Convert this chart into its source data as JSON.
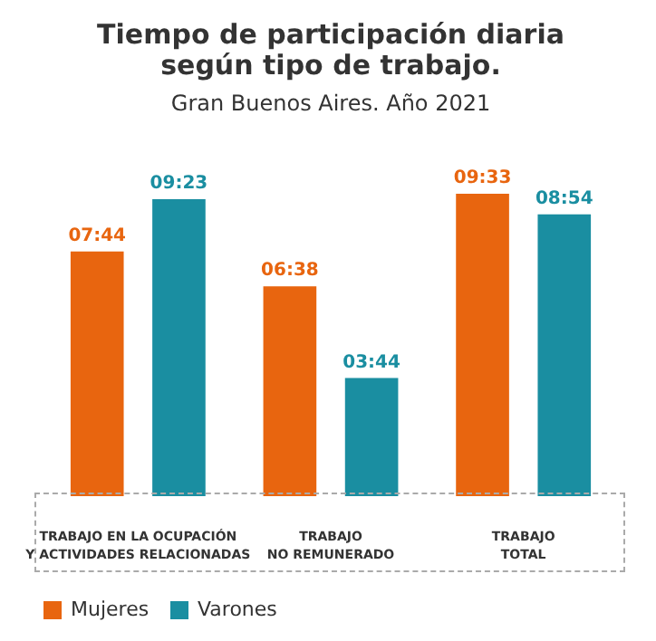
{
  "chart_data": {
    "type": "bar",
    "title": "Tiempo de participación diaria\nsegún tipo de trabajo.",
    "subtitle": "Gran Buenos Aires. Año 2021",
    "categories": [
      "TRABAJO EN LA OCUPACIÓN\nY ACTIVIDADES RELACIONADAS",
      "TRABAJO\nNO REMUNERADO",
      "TRABAJO\nTOTAL"
    ],
    "series": [
      {
        "name": "Mujeres",
        "color": "#e8650f",
        "values": [
          7.73,
          6.63,
          9.55
        ],
        "value_labels": [
          "07:44",
          "06:38",
          "09:33"
        ]
      },
      {
        "name": "Varones",
        "color": "#1a8ea1",
        "values": [
          9.38,
          3.73,
          8.9
        ],
        "value_labels": [
          "09:23",
          "03:44",
          "08:54"
        ]
      }
    ],
    "legend": "bottom"
  }
}
